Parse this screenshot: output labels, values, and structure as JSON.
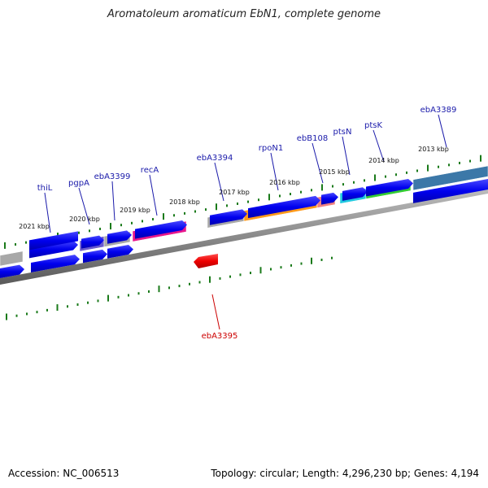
{
  "title": "Aromatoleum aromaticum EbN1, complete genome",
  "footer": {
    "accession": "Accession: NC_006513",
    "summary": "Topology: circular; Length: 4,296,230 bp; Genes: 4,194"
  },
  "colors": {
    "forward_cds": "#0000ee",
    "reverse_cds": "#ee0000",
    "tick": "#1a7a1a",
    "backbone": "#888888",
    "forward_label": "#1a1aaa",
    "reverse_label": "#cc0000"
  },
  "kbp_labels": [
    "2021 kbp",
    "2020 kbp",
    "2019 kbp",
    "2018 kbp",
    "2017 kbp",
    "2016 kbp",
    "2015 kbp",
    "2014 kbp",
    "2013 kbp"
  ],
  "gene_labels": [
    {
      "text": "thiL",
      "strand": "forward"
    },
    {
      "text": "pgpA",
      "strand": "forward"
    },
    {
      "text": "ebA3399",
      "strand": "forward"
    },
    {
      "text": "recA",
      "strand": "forward"
    },
    {
      "text": "ebA3394",
      "strand": "forward"
    },
    {
      "text": "rpoN1",
      "strand": "forward"
    },
    {
      "text": "ebB108",
      "strand": "forward"
    },
    {
      "text": "ptsN",
      "strand": "forward"
    },
    {
      "text": "ptsK",
      "strand": "forward"
    },
    {
      "text": "ebA3389",
      "strand": "forward"
    },
    {
      "text": "ebA3395",
      "strand": "reverse"
    }
  ],
  "feature_colors": {
    "grey": "#a8a8a8",
    "purple": "#6a5acd",
    "magenta": "#e8168c",
    "orange": "#ff9a1a",
    "salmon": "#f08080",
    "cyan": "#20c8e0",
    "green": "#33cc33",
    "steel": "#3c78a8"
  }
}
